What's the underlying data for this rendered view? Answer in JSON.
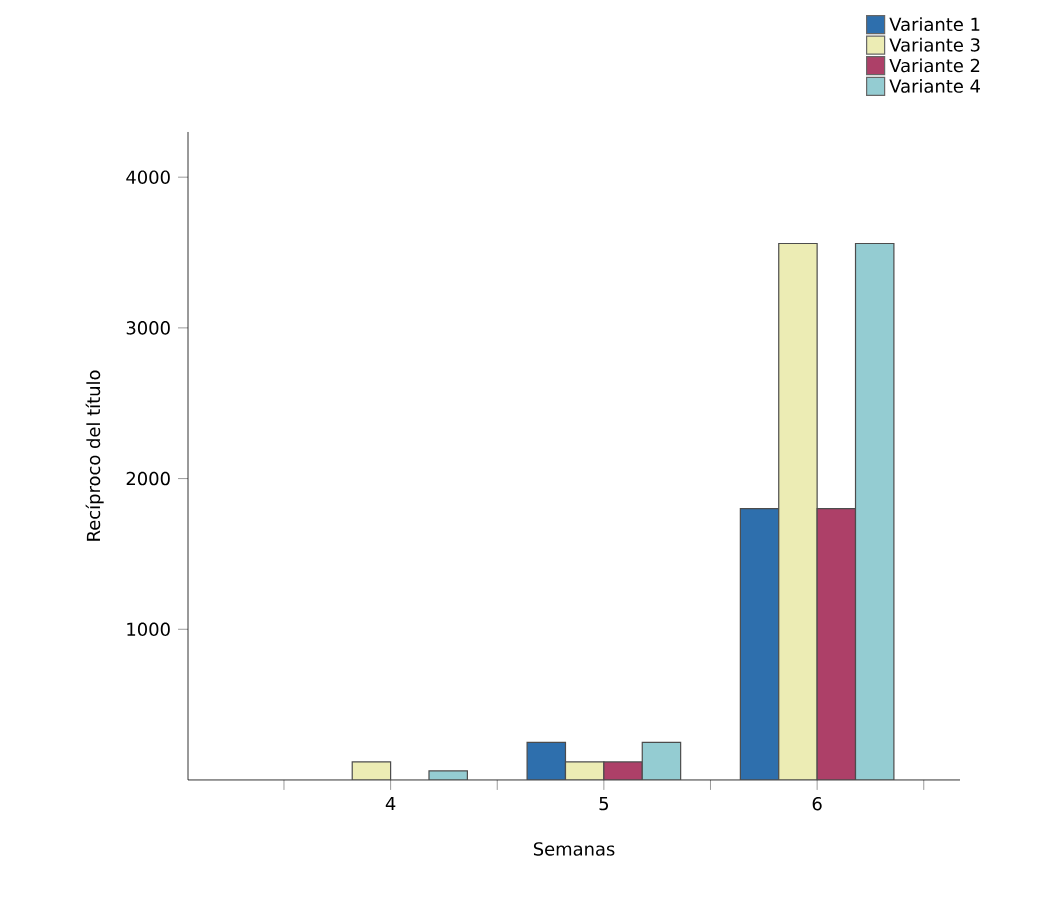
{
  "chart_data": {
    "type": "bar",
    "xlabel": "Semanas",
    "ylabel": "Recíproco del título",
    "categories": [
      "4",
      "5",
      "6"
    ],
    "series": [
      {
        "name": "Variante 1",
        "color": "#2e6fad",
        "values": [
          null,
          250,
          1800
        ]
      },
      {
        "name": "Variante 3",
        "color": "#ececb4",
        "values": [
          120,
          120,
          3560
        ]
      },
      {
        "name": "Variante 2",
        "color": "#ad4068",
        "values": [
          null,
          120,
          1800
        ]
      },
      {
        "name": "Variante 4",
        "color": "#94ccd2",
        "values": [
          60,
          250,
          3560
        ]
      }
    ],
    "ylim": [
      0,
      4300
    ],
    "yticks": [
      1000,
      2000,
      3000,
      4000
    ],
    "grid": false,
    "legend": "top right"
  }
}
